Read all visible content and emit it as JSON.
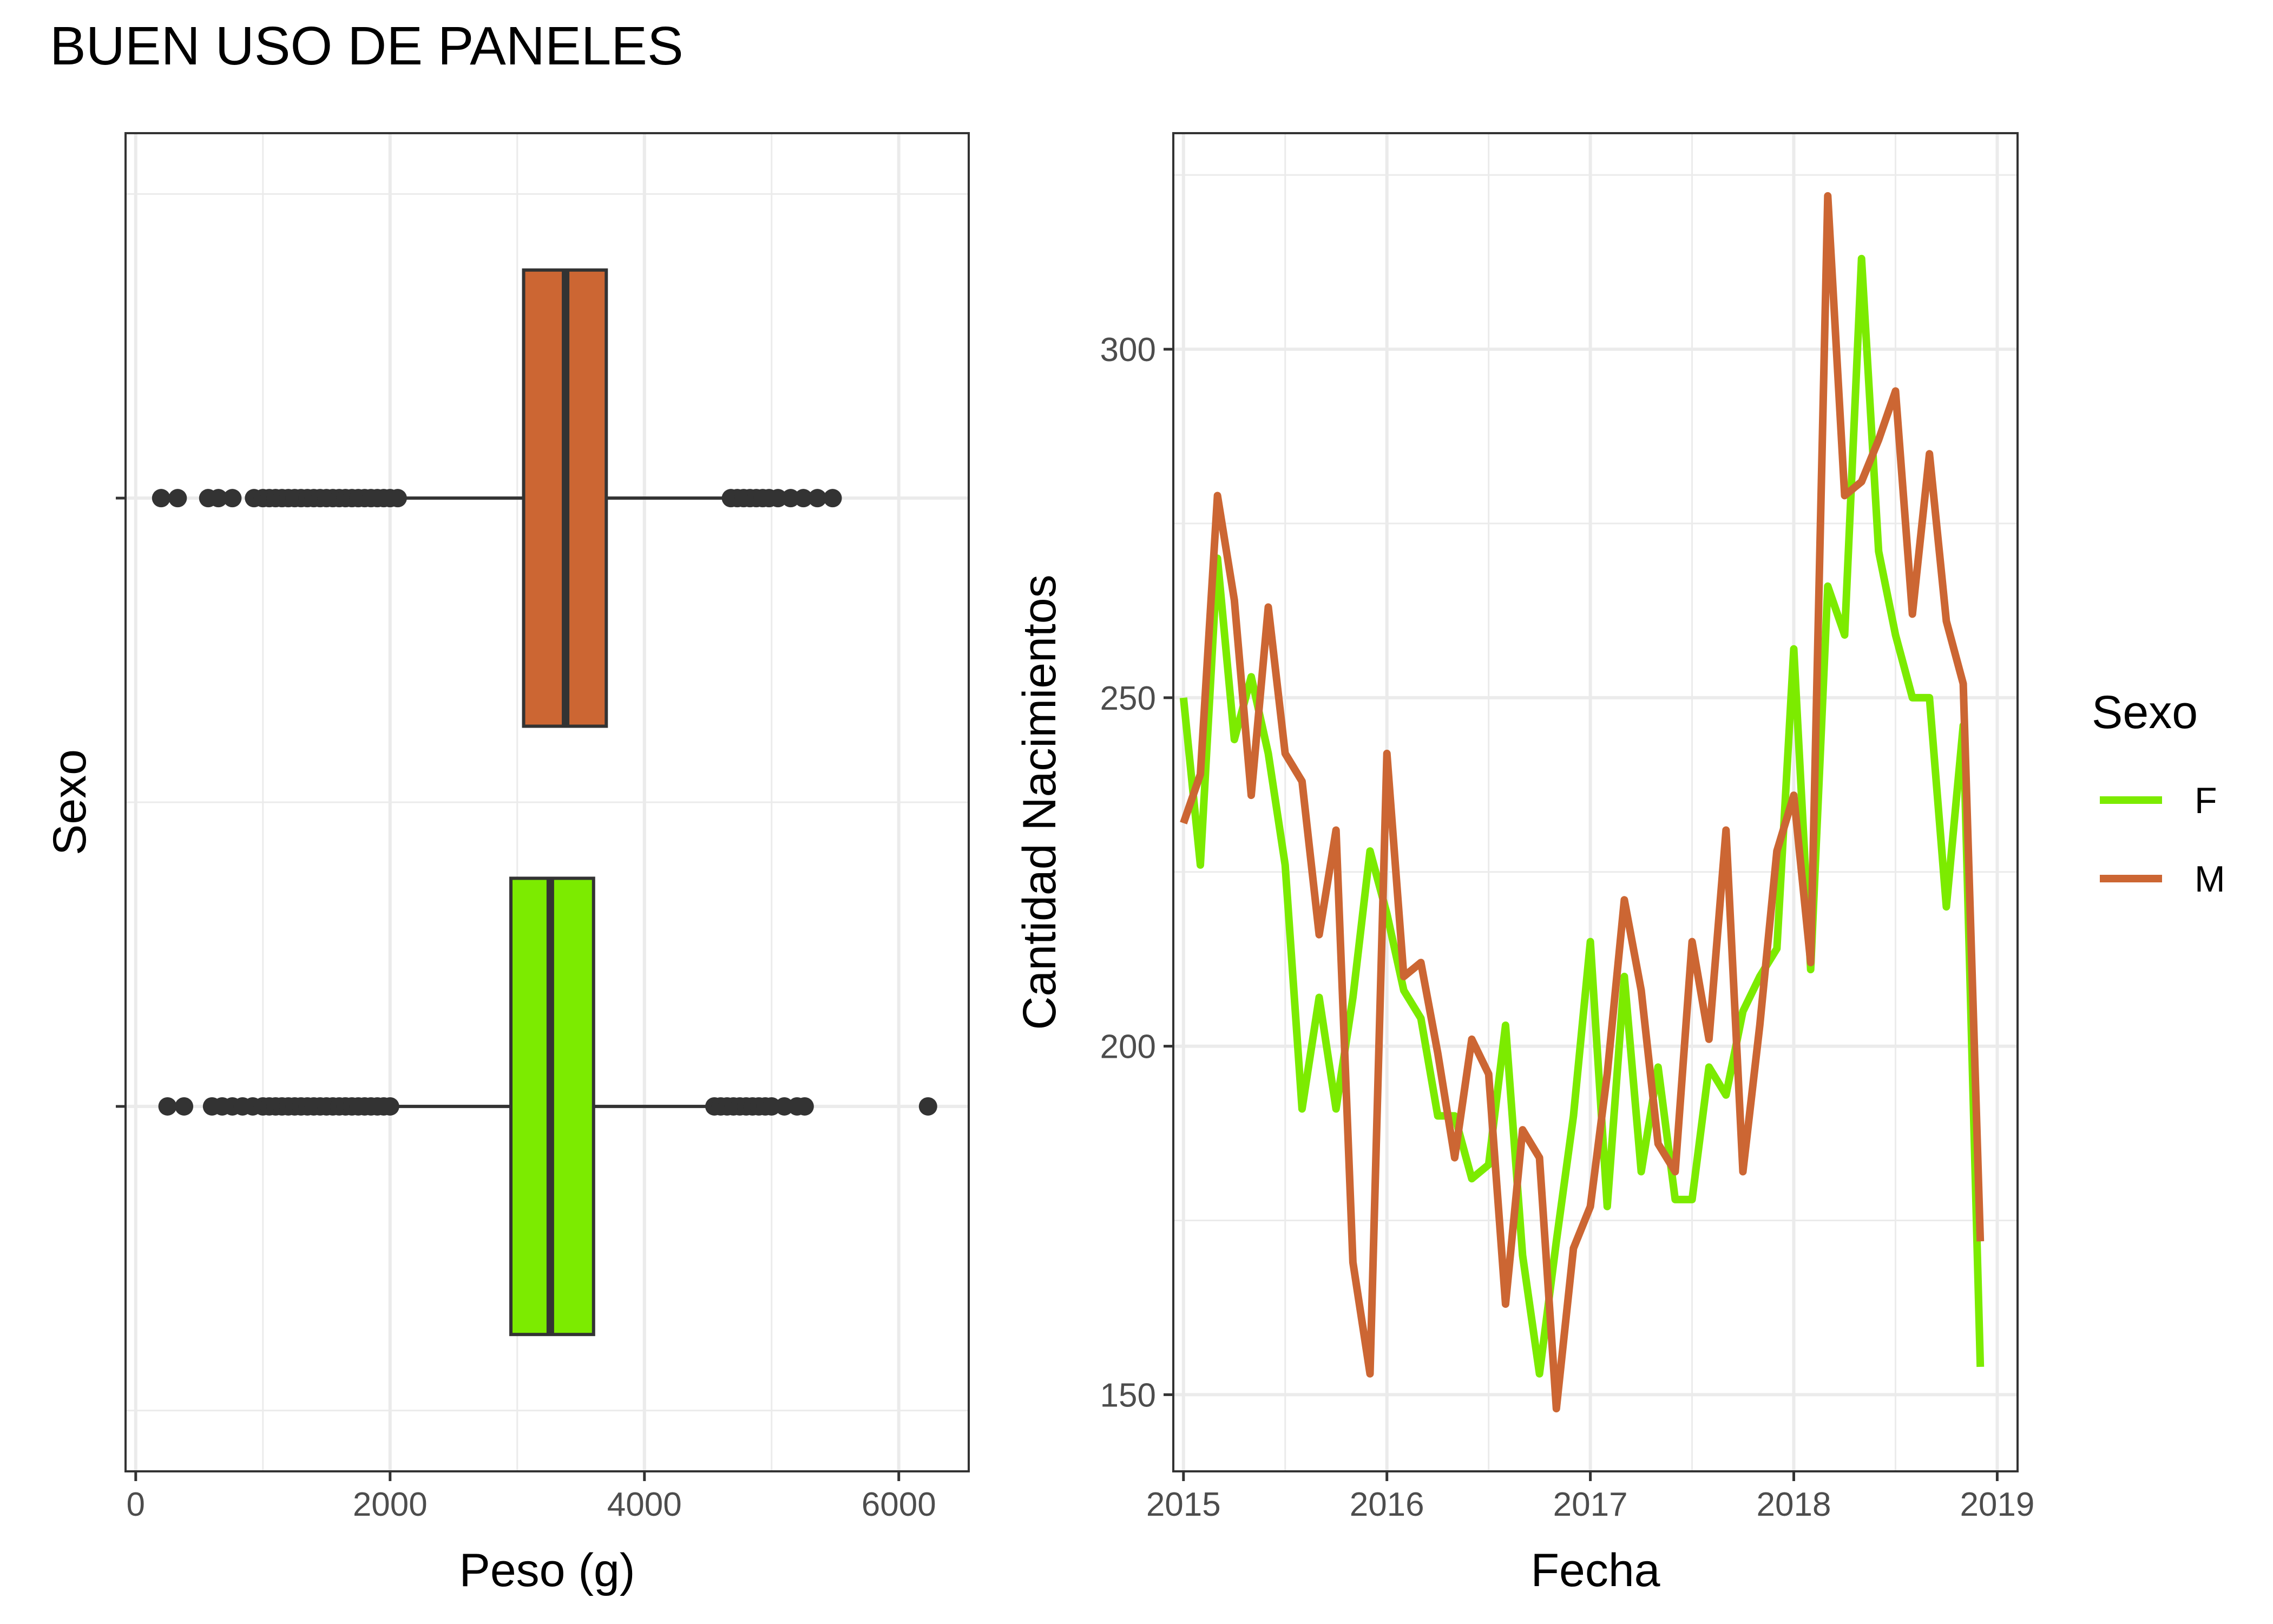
{
  "title": "BUEN USO DE PANELES",
  "colors": {
    "F": "#7CEB00",
    "M": "#CC6633",
    "outline": "#333333",
    "grid": "#EBEBEB",
    "panel_border": "#333333"
  },
  "chart_data": [
    {
      "type": "boxplot",
      "orientation": "horizontal",
      "xlabel": "Peso (g)",
      "ylabel": "Sexo",
      "xlim": [
        -80,
        6550
      ],
      "xticks": [
        0,
        2000,
        4000,
        6000
      ],
      "xtick_labels": [
        "0",
        "2000",
        "4000",
        "6000"
      ],
      "grid": true,
      "groups": [
        {
          "name": "F",
          "color": "#7CEB00",
          "q1": 2950,
          "median": 3260,
          "q3": 3600,
          "whisker_low": 2020,
          "whisker_high": 4570,
          "outliers": [
            250,
            380,
            600,
            680,
            760,
            840,
            920,
            1000,
            1050,
            1100,
            1150,
            1200,
            1250,
            1300,
            1350,
            1400,
            1450,
            1500,
            1550,
            1600,
            1650,
            1700,
            1750,
            1800,
            1850,
            1900,
            1950,
            2000,
            4550,
            4600,
            4650,
            4700,
            4750,
            4800,
            4850,
            4900,
            4950,
            5000,
            5100,
            5200,
            5260,
            6230
          ]
        },
        {
          "name": "M",
          "color": "#CC6633",
          "q1": 3050,
          "median": 3380,
          "q3": 3700,
          "whisker_low": 2100,
          "whisker_high": 4680,
          "outliers": [
            200,
            330,
            570,
            650,
            760,
            930,
            1000,
            1050,
            1100,
            1150,
            1200,
            1250,
            1300,
            1350,
            1400,
            1450,
            1500,
            1550,
            1600,
            1650,
            1700,
            1750,
            1800,
            1850,
            1900,
            1950,
            2000,
            2060,
            4680,
            4730,
            4780,
            4830,
            4880,
            4930,
            4980,
            5050,
            5150,
            5250,
            5360,
            5480
          ]
        }
      ]
    },
    {
      "type": "line",
      "xlabel": "Fecha",
      "ylabel": "Cantidad Nacimientos",
      "xlim": [
        2014.95,
        2019.1
      ],
      "ylim": [
        139,
        331
      ],
      "xticks": [
        2015,
        2016,
        2017,
        2018,
        2019
      ],
      "xtick_labels": [
        "2015",
        "2016",
        "2017",
        "2018",
        "2019"
      ],
      "yticks": [
        150,
        200,
        250,
        300
      ],
      "ytick_labels": [
        "150",
        "200",
        "250",
        "300"
      ],
      "grid": true,
      "legend": {
        "title": "Sexo",
        "position": "right",
        "entries": [
          "F",
          "M"
        ]
      },
      "x": [
        2015.0,
        2015.083,
        2015.167,
        2015.25,
        2015.333,
        2015.417,
        2015.5,
        2015.583,
        2015.667,
        2015.75,
        2015.833,
        2015.917,
        2016.0,
        2016.083,
        2016.167,
        2016.25,
        2016.333,
        2016.417,
        2016.5,
        2016.583,
        2016.667,
        2016.75,
        2016.833,
        2016.917,
        2017.0,
        2017.083,
        2017.167,
        2017.25,
        2017.333,
        2017.417,
        2017.5,
        2017.583,
        2017.667,
        2017.75,
        2017.833,
        2017.917,
        2018.0,
        2018.083,
        2018.167,
        2018.25,
        2018.333,
        2018.417,
        2018.5,
        2018.583,
        2018.667,
        2018.75,
        2018.833,
        2018.917
      ],
      "series": [
        {
          "name": "F",
          "color": "#7CEB00",
          "values": [
            250,
            226,
            270,
            244,
            253,
            242,
            226,
            191,
            207,
            191,
            207,
            228,
            219,
            208,
            204,
            190,
            190,
            181,
            183,
            203,
            170,
            153,
            172,
            190,
            215,
            177,
            210,
            182,
            197,
            178,
            178,
            197,
            193,
            205,
            210,
            214,
            257,
            211,
            266,
            259,
            313,
            271,
            259,
            250,
            250,
            220,
            246,
            154
          ]
        },
        {
          "name": "M",
          "color": "#CC6633",
          "values": [
            232,
            239,
            279,
            264,
            236,
            263,
            242,
            238,
            216,
            231,
            169,
            153,
            242,
            210,
            212,
            199,
            184,
            201,
            196,
            163,
            188,
            184,
            148,
            171,
            177,
            196,
            221,
            208,
            186,
            182,
            215,
            201,
            231,
            182,
            203,
            228,
            236,
            212,
            322,
            279,
            281,
            287,
            294,
            262,
            285,
            261,
            252,
            172
          ]
        }
      ]
    }
  ]
}
